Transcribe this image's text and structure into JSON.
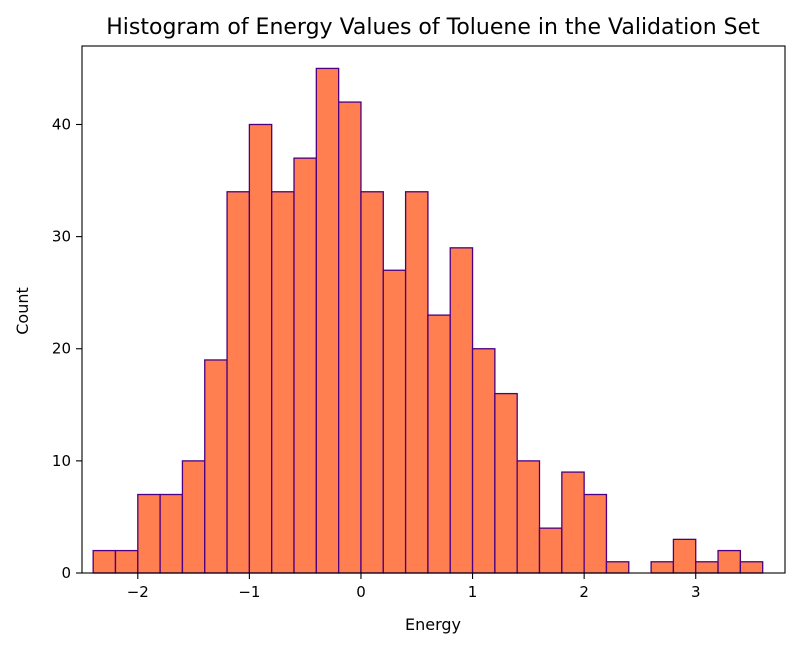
{
  "chart_data": {
    "type": "bar",
    "title": "Histogram of Energy Values of Toluene in the Validation Set",
    "xlabel": "Energy",
    "ylabel": "Count",
    "xlim": [
      -2.5,
      3.8
    ],
    "ylim": [
      0,
      47
    ],
    "xticks": [
      -2,
      -1,
      0,
      1,
      2,
      3
    ],
    "yticks": [
      0,
      10,
      20,
      30,
      40
    ],
    "xtick_labels": [
      "−2",
      "−1",
      "0",
      "1",
      "2",
      "3"
    ],
    "ytick_labels": [
      "0",
      "10",
      "20",
      "30",
      "40"
    ],
    "grid": false,
    "legend": "none",
    "bar_fill_color": "#ff7f50",
    "bar_edge_color": "#4b0082",
    "bin_edges": [
      -2.4,
      -2.2,
      -2.0,
      -1.8,
      -1.6,
      -1.4,
      -1.2,
      -1.0,
      -0.8,
      -0.6,
      -0.4,
      -0.2,
      0.0,
      0.2,
      0.4,
      0.6,
      0.8,
      1.0,
      1.2,
      1.4,
      1.6,
      1.8,
      2.0,
      2.2,
      2.4,
      2.6,
      2.8,
      3.0,
      3.2,
      3.4,
      3.6
    ],
    "counts": [
      2,
      2,
      7,
      7,
      10,
      19,
      34,
      40,
      34,
      37,
      45,
      42,
      34,
      27,
      34,
      23,
      29,
      20,
      16,
      10,
      4,
      9,
      7,
      1,
      0,
      1,
      3,
      1,
      2,
      1
    ]
  }
}
